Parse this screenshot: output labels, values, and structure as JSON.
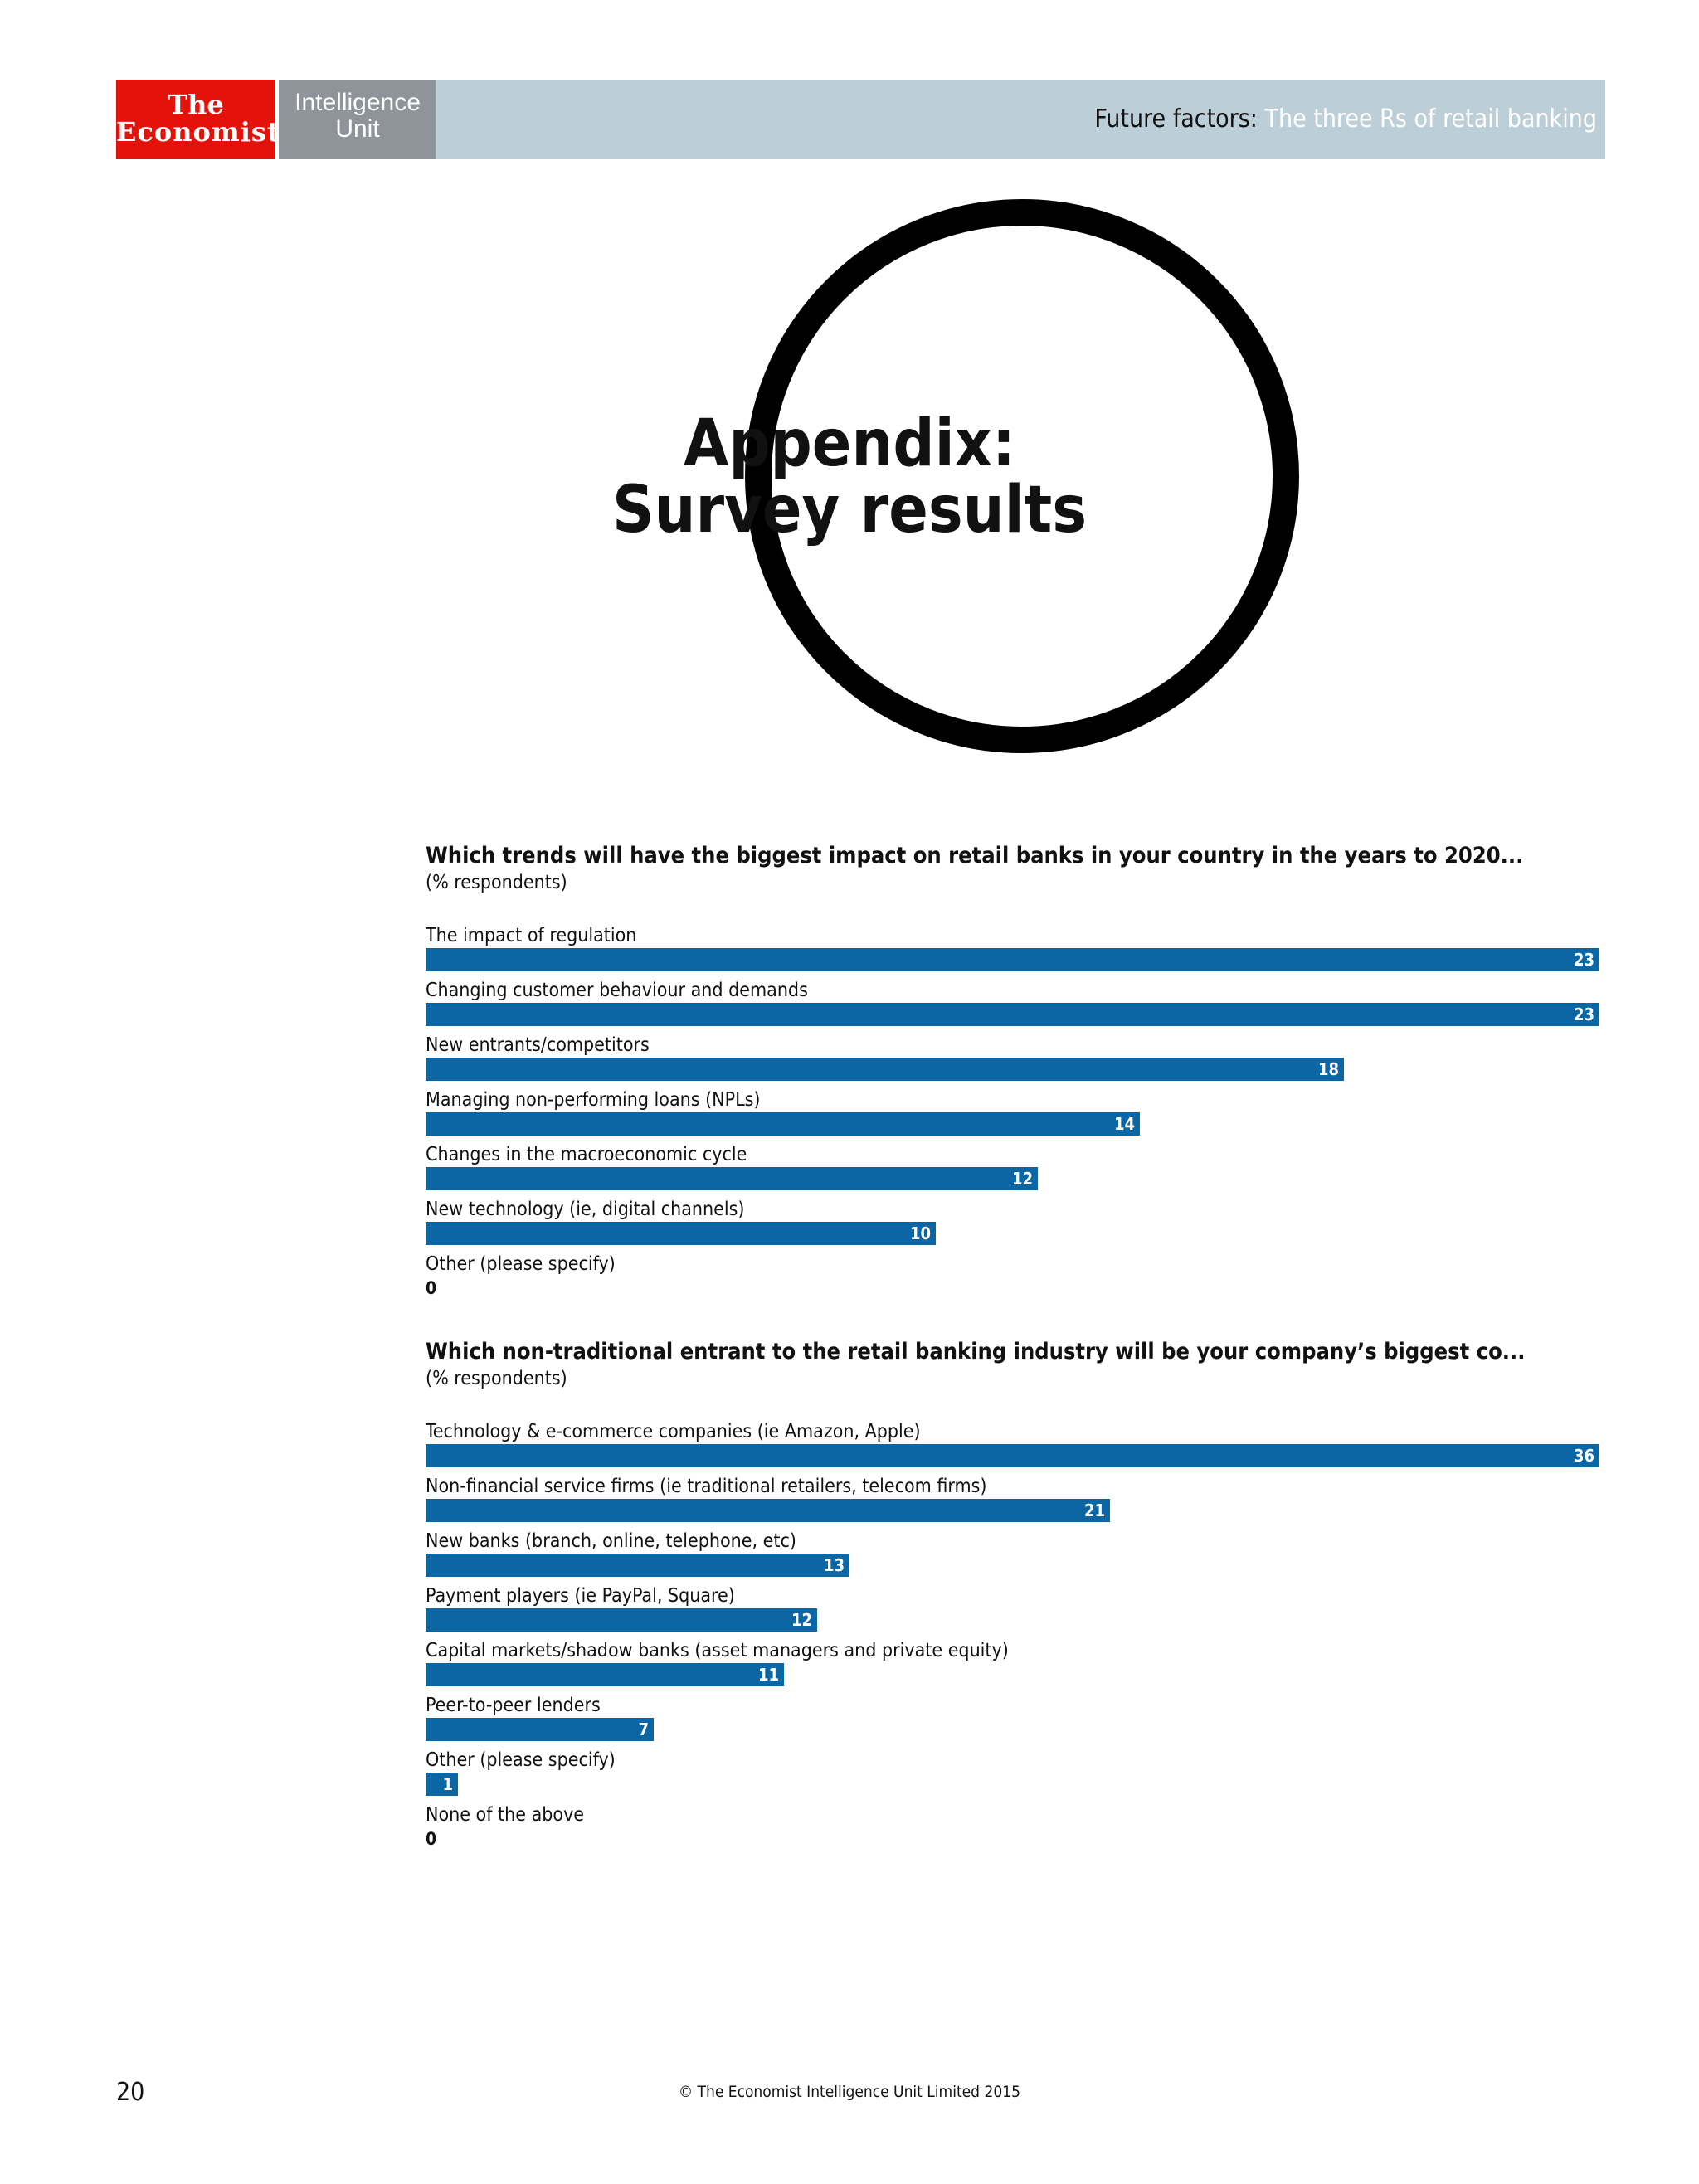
{
  "header": {
    "logo_economist_line1": "The",
    "logo_economist_line2": "Economist",
    "logo_eiu_line1": "Intelligence",
    "logo_eiu_line2": "Unit",
    "title_prefix": "Future factors:",
    "title_suffix": " The three Rs of retail banking"
  },
  "appendix": {
    "line1": "Appendix:",
    "line2": "Survey results"
  },
  "colors": {
    "bar": "#0c66a4",
    "header_band": "#bccfd8",
    "economist_red": "#e3120b"
  },
  "chart_data": [
    {
      "type": "bar",
      "orientation": "horizontal",
      "title": "Which trends will have the biggest impact on retail banks in your country in the years to 2020...",
      "subtitle": "(% respondents)",
      "categories": [
        "The impact of regulation",
        "Changing customer behaviour and demands",
        "New entrants/competitors",
        "Managing non-performing loans (NPLs)",
        "Changes in the macroeconomic cycle",
        "New technology (ie, digital channels)",
        "Other (please specify)"
      ],
      "values": [
        23,
        23,
        18,
        14,
        12,
        10,
        0
      ],
      "xlim": [
        0,
        23
      ]
    },
    {
      "type": "bar",
      "orientation": "horizontal",
      "title": "Which non-traditional entrant to the retail banking industry will be your company’s biggest co...",
      "subtitle": "(% respondents)",
      "categories": [
        "Technology & e-commerce companies (ie Amazon, Apple)",
        "Non-financial service firms (ie traditional retailers, telecom firms)",
        "New banks (branch, online, telephone, etc)",
        "Payment players (ie PayPal, Square)",
        "Capital markets/shadow banks (asset managers and private equity)",
        "Peer-to-peer lenders",
        "Other (please specify)",
        "None of the above"
      ],
      "values": [
        36,
        21,
        13,
        12,
        11,
        7,
        1,
        0
      ],
      "xlim": [
        0,
        36
      ]
    }
  ],
  "footer": {
    "page_number": "20",
    "copyright": "© The Economist Intelligence Unit Limited 2015"
  }
}
